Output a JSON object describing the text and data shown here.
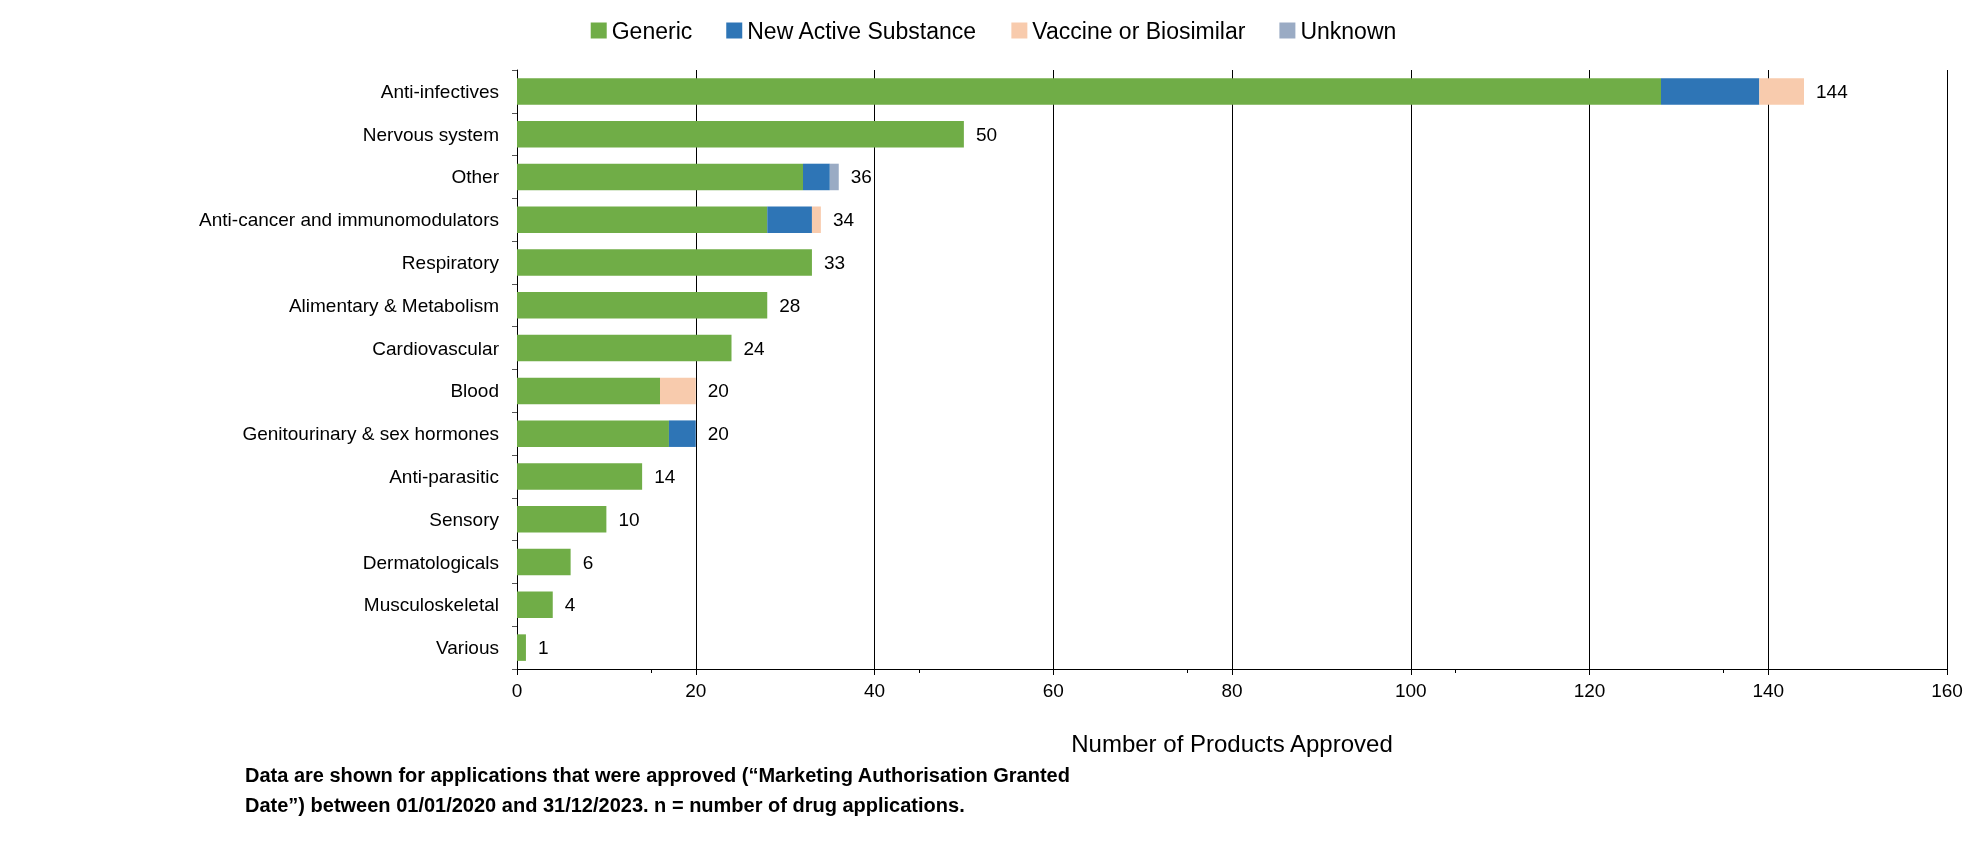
{
  "chart_data": {
    "type": "bar",
    "orientation": "horizontal",
    "stacked": true,
    "categories": [
      "Anti-infectives",
      "Nervous system",
      "Other",
      "Anti-cancer and immunomodulators",
      "Respiratory",
      "Alimentary & Metabolism",
      "Cardiovascular",
      "Blood",
      "Genitourinary & sex hormones",
      "Anti-parasitic",
      "Sensory",
      "Dermatologicals",
      "Musculoskeletal",
      "Various"
    ],
    "series": [
      {
        "name": "Generic",
        "color": "#70ad47",
        "values": [
          128,
          50,
          32,
          28,
          33,
          28,
          24,
          16,
          17,
          14,
          10,
          6,
          4,
          1
        ]
      },
      {
        "name": "New Active Substance",
        "color": "#2e75b6",
        "values": [
          11,
          0,
          3,
          5,
          0,
          0,
          0,
          0,
          3,
          0,
          0,
          0,
          0,
          0
        ]
      },
      {
        "name": "Vaccine or Biosimilar",
        "color": "#f8cbad",
        "values": [
          5,
          0,
          0,
          1,
          0,
          0,
          0,
          4,
          0,
          0,
          0,
          0,
          0,
          0
        ]
      },
      {
        "name": "Unknown",
        "color": "#9aabc4",
        "values": [
          0,
          0,
          1,
          0,
          0,
          0,
          0,
          0,
          0,
          0,
          0,
          0,
          0,
          0
        ]
      }
    ],
    "totals": [
      "144",
      "50",
      "36",
      "34",
      "33",
      "28",
      "24",
      "20",
      "20",
      "14",
      "10",
      "6",
      "4",
      "1"
    ],
    "xlabel": "Number of Products Approved",
    "xlim": [
      0,
      160
    ],
    "xticks": [
      0,
      20,
      40,
      60,
      80,
      100,
      120,
      140,
      160
    ],
    "grid": "x",
    "legend": "top",
    "annotations": [
      "Data are shown for applications that were approved (“Marketing Authorisation Granted Date”) between 01/01/2020 and 31/12/2023. n = number of drug applications."
    ]
  }
}
